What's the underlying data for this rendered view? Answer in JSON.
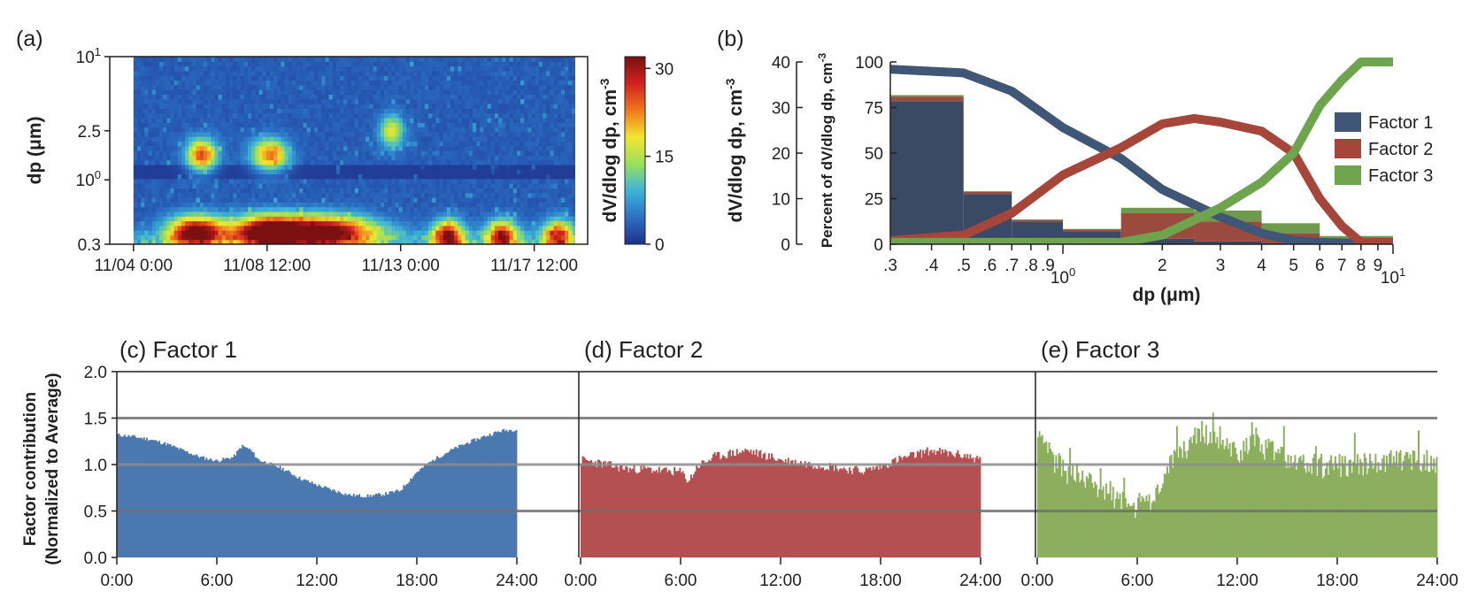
{
  "chart_data": [
    {
      "panel": "(a)",
      "type": "heatmap",
      "ylabel": "dp (μm)",
      "colorbar_label": "dV/dlog dp, cm",
      "colorbar_label_sup": "-3",
      "colorbar_range": [
        0,
        32
      ],
      "colorbar_ticks": [
        "30",
        "15",
        "0"
      ],
      "colorbar_tick_values": [
        30,
        15,
        0
      ],
      "colors": [
        "#1f2f8c",
        "#2a6fc4",
        "#3fb6d8",
        "#9be05a",
        "#f2e62f",
        "#f07a1c",
        "#d21f1f",
        "#7a1010"
      ],
      "y_ticks": [
        {
          "base": "10",
          "sup": "1"
        },
        {
          "base": "2.5",
          "sup": ""
        },
        {
          "base": "10",
          "sup": "0"
        },
        {
          "base": "0.3",
          "sup": ""
        }
      ],
      "y_tick_values": [
        10,
        2.5,
        1,
        0.3
      ],
      "ylim": [
        0.3,
        10
      ],
      "x_ticks": [
        "11/04 0:00",
        "11/08 12:00",
        "11/13 0:00",
        "11/17 12:00"
      ],
      "x_tick_days": [
        0,
        4.5,
        9,
        13.5
      ],
      "xlim_days": [
        -0.8,
        15.3
      ],
      "data_start_day": 0,
      "data_end_day": 14.9,
      "events": [
        {
          "day": 2.3,
          "width": 0.5,
          "level": 22,
          "dp": 1.6
        },
        {
          "day": 4.6,
          "width": 0.6,
          "level": 20,
          "dp": 1.6
        },
        {
          "day": 8.7,
          "width": 0.4,
          "level": 14,
          "dp": 2.5
        },
        {
          "day": 2.1,
          "width": 0.9,
          "level": 30,
          "dp": 0.38
        },
        {
          "day": 4.5,
          "width": 1.2,
          "level": 31,
          "dp": 0.38
        },
        {
          "day": 6.5,
          "width": 1.6,
          "level": 30,
          "dp": 0.38
        },
        {
          "day": 10.6,
          "width": 0.5,
          "level": 26,
          "dp": 0.35
        },
        {
          "day": 12.4,
          "width": 0.5,
          "level": 24,
          "dp": 0.35
        },
        {
          "day": 14.3,
          "width": 0.5,
          "level": 22,
          "dp": 0.35
        }
      ]
    },
    {
      "panel": "(b)",
      "type": "area",
      "xlabel": "dp (μm)",
      "ylabel_left": "dV/dlog dp, cm",
      "ylabel_left_sup": "-3",
      "ylabel_right": "Percent of dV/dlog dp, cm",
      "ylabel_right_sup": "-3",
      "ylim_left": [
        0,
        40
      ],
      "ylim_right": [
        0,
        100
      ],
      "yticks_left": [
        "40",
        "30",
        "20",
        "10",
        "0"
      ],
      "ytick_values_left": [
        40,
        30,
        20,
        10,
        0
      ],
      "yticks_right": [
        "100",
        "75",
        "50",
        "25",
        "0"
      ],
      "ytick_values_right": [
        100,
        75,
        50,
        25,
        0
      ],
      "x_ticks": [
        ".3",
        ".4",
        ".5",
        ".6",
        ".7",
        ".8",
        ".9",
        "10",
        "2",
        "3",
        "4",
        "5",
        "6",
        "7",
        "8",
        "9",
        "10"
      ],
      "x_tick_values": [
        0.3,
        0.4,
        0.5,
        0.6,
        0.7,
        0.8,
        0.9,
        1,
        2,
        3,
        4,
        5,
        6,
        7,
        8,
        9,
        10
      ],
      "x_tick_sups": [
        "",
        "",
        "",
        "",
        "",
        "",
        "",
        "0",
        "",
        "",
        "",
        "",
        "",
        "",
        "",
        "",
        "1"
      ],
      "xlim": [
        0.3,
        10
      ],
      "bins": [
        0.3,
        0.5,
        0.7,
        1.0,
        1.5,
        2.5,
        4.0,
        6.0,
        10
      ],
      "legend": [
        "Factor 1",
        "Factor 2",
        "Factor 3"
      ],
      "series_colors": [
        "#3f5676",
        "#a6463a",
        "#6fa44f"
      ],
      "stack_fill_colors": [
        "#3a4964",
        "#9b4a3e",
        "#6d9a4c"
      ],
      "stacked_values": [
        {
          "name": "Factor 1",
          "values": [
            78.5,
            27.5,
            12.5,
            7.0,
            3.0,
            1.5,
            0.5,
            0.2
          ]
        },
        {
          "name": "Factor 2",
          "values": [
            2.5,
            1.2,
            0.8,
            1.0,
            14.0,
            11.0,
            5.5,
            1.3
          ]
        },
        {
          "name": "Factor 3",
          "values": [
            0.8,
            0.4,
            0.3,
            0.4,
            3.0,
            6.0,
            5.5,
            3.0
          ]
        }
      ],
      "percent_series": [
        {
          "name": "Factor 1",
          "x": [
            0.3,
            0.5,
            0.7,
            1.0,
            1.5,
            2.0,
            3.0,
            4.0,
            5.0,
            6.0,
            8.0,
            10
          ],
          "values": [
            96,
            94,
            84,
            64,
            47,
            30,
            15,
            6,
            2,
            1,
            0.5,
            0.5
          ]
        },
        {
          "name": "Factor 2",
          "x": [
            0.3,
            0.5,
            0.7,
            1.0,
            1.5,
            2.0,
            2.5,
            3.0,
            4.0,
            5.0,
            6.0,
            7.0,
            8.0,
            10
          ],
          "values": [
            2,
            5,
            17,
            38,
            53,
            66,
            69,
            67,
            62,
            50,
            25,
            10,
            1,
            1
          ]
        },
        {
          "name": "Factor 3",
          "x": [
            0.3,
            0.5,
            0.7,
            1.0,
            1.5,
            2.0,
            3.0,
            4.0,
            5.0,
            6.0,
            7.0,
            8.0,
            10
          ],
          "values": [
            1,
            1,
            1,
            1,
            1,
            5,
            20,
            34,
            50,
            76,
            90,
            100,
            100
          ]
        }
      ]
    },
    {
      "panel": "(c)",
      "type": "bar",
      "title": "Factor 1",
      "color": "#4c78b0",
      "x_ticks": [
        "0:00",
        "6:00",
        "12:00",
        "18:00",
        "24:00"
      ],
      "x_tick_hours": [
        0,
        6,
        12,
        18,
        24
      ],
      "xlim_hours": [
        0,
        24
      ],
      "ylim": [
        0,
        2
      ],
      "profile_hours": [
        0,
        1,
        2,
        3,
        4,
        5,
        6,
        7,
        7.5,
        8,
        8.5,
        9,
        10,
        11,
        12,
        13,
        14,
        15,
        16,
        17,
        18,
        19,
        20,
        21,
        22,
        23,
        24
      ],
      "profile_values": [
        1.32,
        1.3,
        1.27,
        1.22,
        1.15,
        1.08,
        1.04,
        1.08,
        1.2,
        1.16,
        1.05,
        1.02,
        0.95,
        0.85,
        0.78,
        0.72,
        0.67,
        0.66,
        0.68,
        0.72,
        0.92,
        1.05,
        1.15,
        1.23,
        1.3,
        1.36,
        1.38
      ],
      "noise": 0.02
    },
    {
      "panel": "(d)",
      "type": "bar",
      "title": "Factor 2",
      "color": "#b55052",
      "x_ticks": [
        "0:00",
        "6:00",
        "12:00",
        "18:00",
        "24:00"
      ],
      "x_tick_hours": [
        0,
        6,
        12,
        18,
        24
      ],
      "xlim_hours": [
        0,
        24
      ],
      "ylim": [
        0,
        2
      ],
      "profile_hours": [
        0,
        1,
        2,
        3,
        4,
        5,
        6,
        6.5,
        7,
        8,
        9,
        10,
        11,
        12,
        13,
        14,
        15,
        16,
        17,
        18,
        19,
        20,
        21,
        22,
        23,
        24
      ],
      "profile_values": [
        1.05,
        1.02,
        0.98,
        0.95,
        0.95,
        0.93,
        0.92,
        0.82,
        0.98,
        1.08,
        1.12,
        1.15,
        1.1,
        1.05,
        1.02,
        1.0,
        0.98,
        0.95,
        0.93,
        0.98,
        1.05,
        1.1,
        1.15,
        1.12,
        1.1,
        1.05
      ],
      "noise": 0.05
    },
    {
      "panel": "(e)",
      "type": "bar",
      "title": "Factor 3",
      "color": "#8caf5e",
      "x_ticks": [
        "0:00",
        "6:00",
        "12:00",
        "18:00",
        "24:00"
      ],
      "x_tick_hours": [
        0,
        6,
        12,
        18,
        24
      ],
      "xlim_hours": [
        0,
        24
      ],
      "ylim": [
        0,
        2
      ],
      "profile_hours": [
        0,
        1,
        2,
        3,
        4,
        5,
        6,
        7,
        8,
        9,
        10,
        11,
        12,
        13,
        14,
        15,
        16,
        17,
        18,
        19,
        20,
        21,
        22,
        23,
        24
      ],
      "profile_values": [
        1.25,
        1.05,
        0.9,
        0.85,
        0.75,
        0.6,
        0.55,
        0.62,
        1.05,
        1.2,
        1.35,
        1.3,
        1.15,
        1.2,
        1.15,
        1.05,
        1.0,
        0.98,
        1.0,
        1.0,
        1.0,
        1.02,
        1.05,
        1.05,
        1.0
      ],
      "noise": 0.14
    }
  ],
  "shared": {
    "ylabel_line1": "Factor contribution",
    "ylabel_line2": "(Normalized to Average)",
    "y_ticks": [
      "2.0",
      "1.5",
      "1.0",
      "0.5",
      "0.0"
    ],
    "y_tick_values": [
      2,
      1.5,
      1,
      0.5,
      0
    ],
    "reference_lines": [
      1.5,
      1.0,
      0.5
    ],
    "bars_per_panel": 288
  }
}
